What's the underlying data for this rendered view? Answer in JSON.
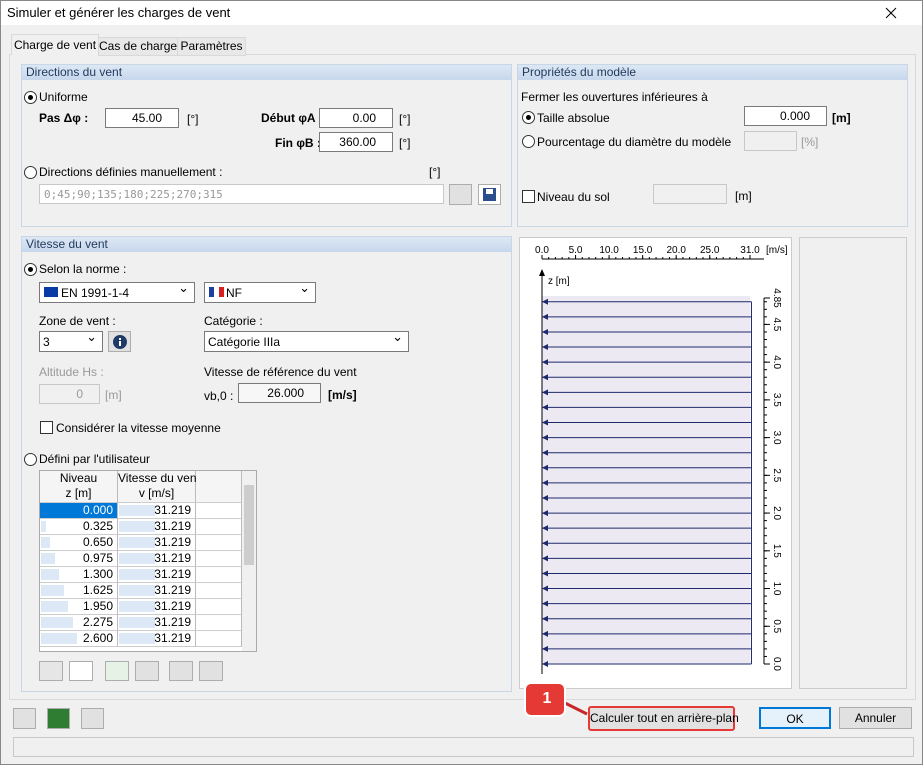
{
  "window": {
    "title": "Simuler et générer les charges de vent"
  },
  "tabs": [
    "Charge de vent",
    "Cas de charge",
    "Paramètres"
  ],
  "wind_directions": {
    "title": "Directions du vent",
    "uniform": "Uniforme",
    "step_label": "Pas Δφ :",
    "step_value": "45.00",
    "step_unit": "[°]",
    "start_label": "Début φA :",
    "start_value": "0.00",
    "start_unit": "[°]",
    "end_label": "Fin φB :",
    "end_value": "360.00",
    "end_unit": "[°]",
    "manual_label": "Directions définies manuellement :",
    "manual_unit": "[°]",
    "manual_value": "0;45;90;135;180;225;270;315"
  },
  "model_properties": {
    "title": "Propriétés du modèle",
    "close_openings": "Fermer les ouvertures inférieures à",
    "absolute": "Taille absolue",
    "absolute_value": "0.000",
    "absolute_unit": "[m]",
    "percentage": "Pourcentage du diamètre du modèle",
    "percentage_unit": "[%]",
    "ground": "Niveau du sol",
    "ground_unit": "[m]"
  },
  "wind_speed": {
    "title": "Vitesse du vent",
    "by_standard": "Selon la norme :",
    "standard": "EN 1991-1-4",
    "annex": "NF",
    "zone_label": "Zone de vent :",
    "zone_value": "3",
    "category_label": "Catégorie :",
    "category_value": "Catégorie IIIa",
    "altitude_label": "Altitude Hs :",
    "altitude_value": "0",
    "altitude_unit": "[m]",
    "ref_speed_label": "Vitesse de référence du vent",
    "vb0_label": "vb,0 :",
    "vb0_value": "26.000",
    "vb0_unit": "[m/s]",
    "mean_speed": "Considérer la vitesse moyenne",
    "user_defined": "Défini par l'utilisateur"
  },
  "table": {
    "headers": [
      [
        "Niveau",
        "z [m]"
      ],
      [
        "Vitesse du vent",
        "v [m/s]"
      ]
    ],
    "rows": [
      [
        "0.000",
        "31.219"
      ],
      [
        "0.325",
        "31.219"
      ],
      [
        "0.650",
        "31.219"
      ],
      [
        "0.975",
        "31.219"
      ],
      [
        "1.300",
        "31.219"
      ],
      [
        "1.625",
        "31.219"
      ],
      [
        "1.950",
        "31.219"
      ],
      [
        "2.275",
        "31.219"
      ],
      [
        "2.600",
        "31.219"
      ]
    ]
  },
  "profile": {
    "x_unit": "[m/s]",
    "y_label": "z [m]",
    "xlim": [
      0,
      31
    ],
    "ylim": [
      0,
      4.85
    ],
    "xticks": [
      {
        "value": 0,
        "label": "0.0"
      },
      {
        "value": 5,
        "label": "5.0"
      },
      {
        "value": 10,
        "label": "10.0"
      },
      {
        "value": 15,
        "label": "15.0"
      },
      {
        "value": 20,
        "label": "20.0"
      },
      {
        "value": 25,
        "label": "25.0"
      },
      {
        "value": 31,
        "label": "31.0"
      }
    ],
    "yticks": [
      {
        "value": 0,
        "label": "0.0"
      },
      {
        "value": 0.5,
        "label": "0.5"
      },
      {
        "value": 1,
        "label": "1.0"
      },
      {
        "value": 1.5,
        "label": "1.5"
      },
      {
        "value": 2,
        "label": "2.0"
      },
      {
        "value": 2.5,
        "label": "2.5"
      },
      {
        "value": 3,
        "label": "3.0"
      },
      {
        "value": 3.5,
        "label": "3.5"
      },
      {
        "value": 4,
        "label": "4.0"
      },
      {
        "value": 4.5,
        "label": "4.5"
      },
      4.85
    ],
    "speed": 31.219,
    "z": [
      0,
      0.2,
      0.4,
      0.6,
      0.8,
      1.0,
      1.2,
      1.4,
      1.6,
      1.8,
      2.0,
      2.2,
      2.4,
      2.6,
      2.8,
      3.0,
      3.2,
      3.4,
      3.6,
      3.8,
      4.0,
      4.2,
      4.4,
      4.6,
      4.8
    ],
    "color": "#1f2a6b"
  },
  "footer": {
    "badge": "1",
    "calculate": "Calculer tout en arrière-plan",
    "ok": "OK",
    "cancel": "Annuler"
  }
}
